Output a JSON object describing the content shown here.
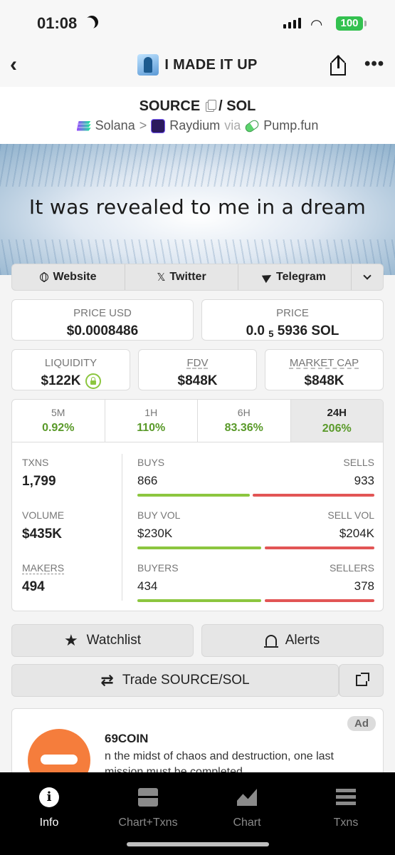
{
  "status": {
    "time": "01:08",
    "battery": "100"
  },
  "header": {
    "title": "I MADE IT UP"
  },
  "pair": {
    "base": "SOURCE",
    "quote": "/ SOL",
    "chain": "Solana",
    "dex": "Raydium",
    "via": "via",
    "launchpad": "Pump.fun"
  },
  "banner": {
    "text": "It was revealed to me in a dream"
  },
  "links": {
    "website": "Website",
    "twitter": "Twitter",
    "telegram": "Telegram"
  },
  "prices": {
    "price_usd_label": "PRICE USD",
    "price_usd": "$0.0008486",
    "price_label": "PRICE",
    "price_prefix": "0.0",
    "price_sub": "5",
    "price_rest": "5936 SOL"
  },
  "metrics": {
    "liquidity_label": "LIQUIDITY",
    "liquidity": "$122K",
    "fdv_label": "FDV",
    "fdv": "$848K",
    "mcap_label": "MARKET CAP",
    "mcap": "$848K"
  },
  "timeframes": [
    {
      "label": "5M",
      "value": "0.92%"
    },
    {
      "label": "1H",
      "value": "110%"
    },
    {
      "label": "6H",
      "value": "83.36%"
    },
    {
      "label": "24H",
      "value": "206%"
    }
  ],
  "stats": {
    "txns_label": "TXNS",
    "txns": "1,799",
    "volume_label": "VOLUME",
    "volume": "$435K",
    "makers_label": "MAKERS",
    "makers": "494",
    "buys_label": "BUYS",
    "buys": "866",
    "sells_label": "SELLS",
    "sells": "933",
    "buyvol_label": "BUY VOL",
    "buyvol": "$230K",
    "sellvol_label": "SELL VOL",
    "sellvol": "$204K",
    "buyers_label": "BUYERS",
    "buyers": "434",
    "sellers_label": "SELLERS",
    "sellers": "378",
    "buys_fraction": 0.48,
    "buyvol_fraction": 0.53,
    "buyers_fraction": 0.53
  },
  "actions": {
    "watchlist": "Watchlist",
    "alerts": "Alerts",
    "trade": "Trade SOURCE/SOL"
  },
  "ad": {
    "badge": "Ad",
    "name": "69COIN",
    "description": "n the midst of chaos and destruction, one last mission must be completed"
  },
  "nav": [
    {
      "label": "Info"
    },
    {
      "label": "Chart+Txns"
    },
    {
      "label": "Chart"
    },
    {
      "label": "Txns"
    }
  ],
  "colors": {
    "green": "#8cc63f",
    "red": "#e25555",
    "pct_green": "#5a9a2a"
  },
  "icons": [
    "moon-icon",
    "signal-icon",
    "wifi-icon",
    "battery-icon",
    "back-icon",
    "share-icon",
    "more-icon",
    "copy-icon",
    "solana-icon",
    "raydium-icon",
    "pump-icon",
    "globe-icon",
    "x-icon",
    "telegram-icon",
    "chevron-down-icon",
    "lock-icon",
    "star-icon",
    "bell-icon",
    "swap-icon",
    "external-link-icon",
    "info-icon",
    "chart-txns-icon",
    "chart-icon",
    "txns-icon"
  ]
}
